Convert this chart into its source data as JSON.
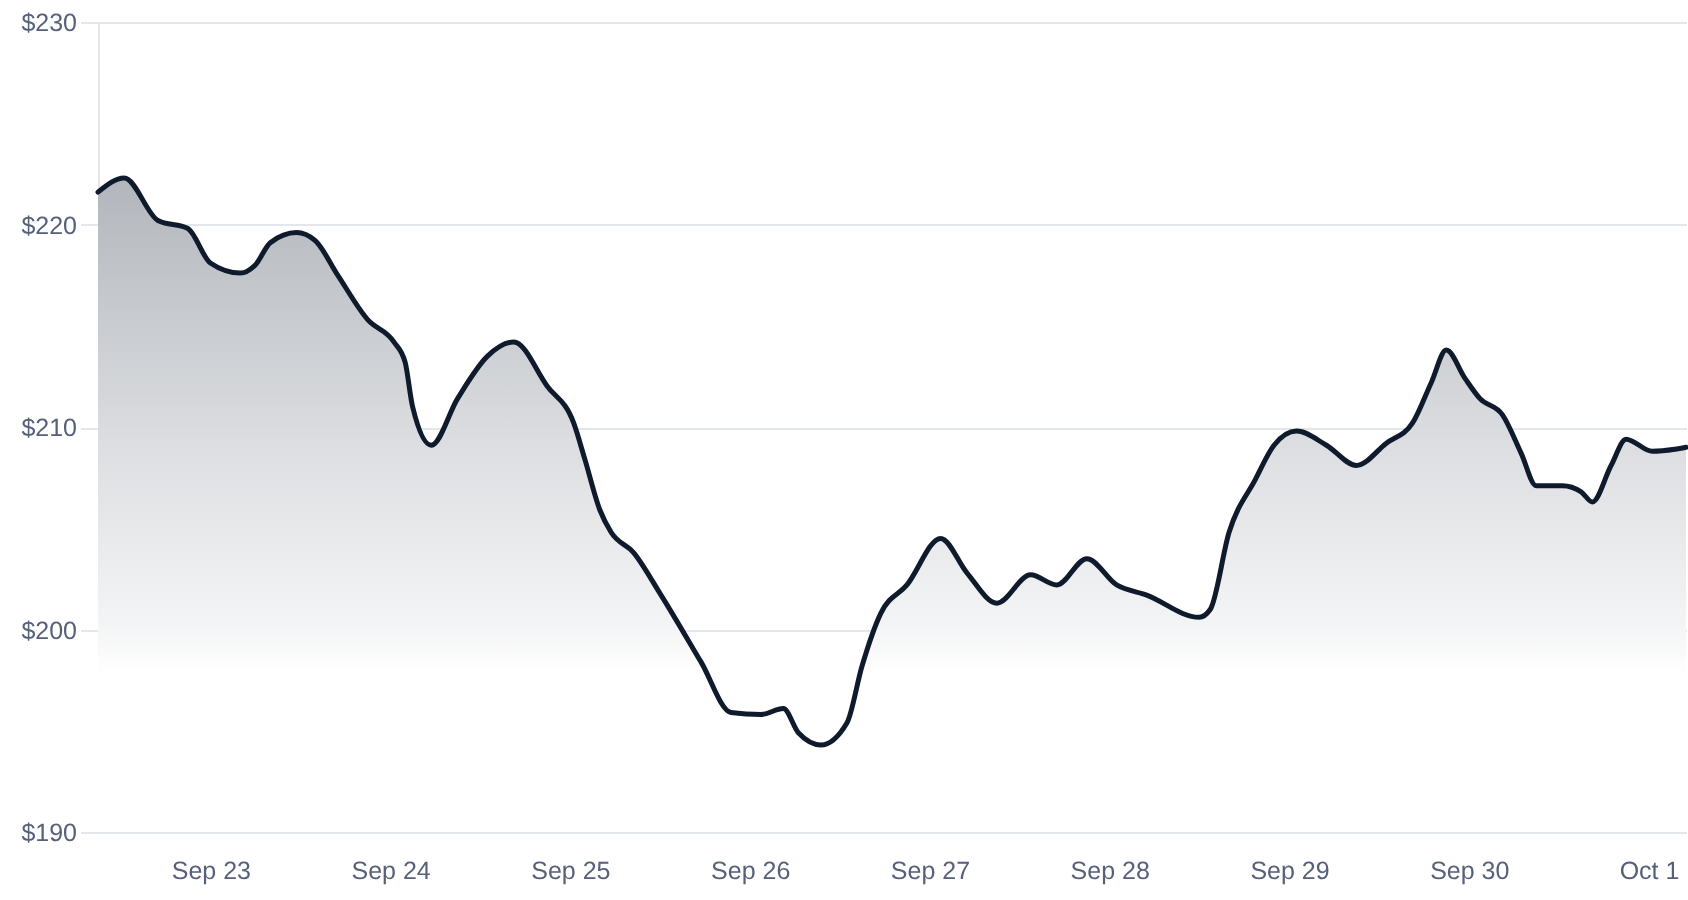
{
  "chart_data": {
    "type": "area",
    "grid": "y",
    "x": [
      "--09-22T09:00",
      "--09-22T12:30",
      "--09-22T17:00",
      "--09-22T21:00",
      "--09-23T00:00",
      "--09-23T04:00",
      "--09-23T06:00",
      "--09-23T08:00",
      "--09-23T11:30",
      "--09-23T14:00",
      "--09-23T17:00",
      "--09-23T21:00",
      "--09-24T00:30",
      "--09-24T02:00",
      "--09-24T03:00",
      "--09-24T05:30",
      "--09-24T09:00",
      "--09-24T13:00",
      "--09-24T16:30",
      "--09-24T21:00",
      "--09-25T00:30",
      "--09-25T02:00",
      "--09-25T04:00",
      "--09-25T05:30",
      "--09-25T08:30",
      "--09-25T12:00",
      "--09-25T17:30",
      "--09-25T21:30",
      "--09-26T01:30",
      "--09-26T04:30",
      "--09-26T06:30",
      "--09-26T09:30",
      "--09-26T13:00",
      "--09-26T15:00",
      "--09-26T17:30",
      "--09-26T21:00",
      "--09-27T01:30",
      "--09-27T05:00",
      "--09-27T09:00",
      "--09-27T13:30",
      "--09-27T17:00",
      "--09-27T21:00",
      "--09-28T01:00",
      "--09-28T05:00",
      "--09-28T12:00",
      "--09-28T13:30",
      "--09-28T16:00",
      "--09-28T19:30",
      "--09-28T22:00",
      "--09-29T01:00",
      "--09-29T05:00",
      "--09-29T09:00",
      "--09-29T13:00",
      "--09-29T16:30",
      "--09-29T19:00",
      "--09-29T21:00",
      "--09-29T23:30",
      "--09-30T01:30",
      "--09-30T04:30",
      "--09-30T07:00",
      "--09-30T09:00",
      "--09-30T12:30",
      "--09-30T15:00",
      "--09-30T16:30",
      "--09-30T19:00",
      "--09-30T21:00",
      "--10-01T00:30",
      "--10-01T03:30",
      "--10-01T05:00"
    ],
    "series": [
      {
        "color": "#0f1b2d",
        "values": [
          221.6,
          222.3,
          220.2,
          219.8,
          218.1,
          217.6,
          218.0,
          219.1,
          219.6,
          219.2,
          217.5,
          215.3,
          214.2,
          213.2,
          211.0,
          209.1,
          211.4,
          213.5,
          214.2,
          212.0,
          210.2,
          208.4,
          205.9,
          204.8,
          203.8,
          201.8,
          198.4,
          195.9,
          195.8,
          196.1,
          194.9,
          194.3,
          195.4,
          198.2,
          200.8,
          202.2,
          204.5,
          202.8,
          201.3,
          202.7,
          202.2,
          203.5,
          202.2,
          201.7,
          200.6,
          201.0,
          204.8,
          207.4,
          209.1,
          209.8,
          209.1,
          208.1,
          209.2,
          210.2,
          212.2,
          213.8,
          212.4,
          211.4,
          210.6,
          208.7,
          207.1,
          207.1,
          206.8,
          206.3,
          208.1,
          209.4,
          208.8,
          208.9,
          209.0
        ]
      }
    ],
    "xlim": [
      "--09-22T09:00",
      "--10-01T05:00"
    ],
    "xticks": [
      {
        "value": "--09-23",
        "label": "Sep 23"
      },
      {
        "value": "--09-24",
        "label": "Sep 24"
      },
      {
        "value": "--09-25",
        "label": "Sep 25"
      },
      {
        "value": "--09-26",
        "label": "Sep 26"
      },
      {
        "value": "--09-27",
        "label": "Sep 27"
      },
      {
        "value": "--09-28",
        "label": "Sep 28"
      },
      {
        "value": "--09-29",
        "label": "Sep 29"
      },
      {
        "value": "--09-30",
        "label": "Sep 30"
      },
      {
        "value": "--10-01",
        "label": "Oct 1"
      }
    ],
    "ylim": [
      190,
      230
    ],
    "yticks": [
      {
        "value": 190,
        "label": "$190"
      },
      {
        "value": 200,
        "label": "$200"
      },
      {
        "value": 210,
        "label": "$210"
      },
      {
        "value": 220,
        "label": "$220"
      },
      {
        "value": 230,
        "label": "$230"
      }
    ]
  }
}
